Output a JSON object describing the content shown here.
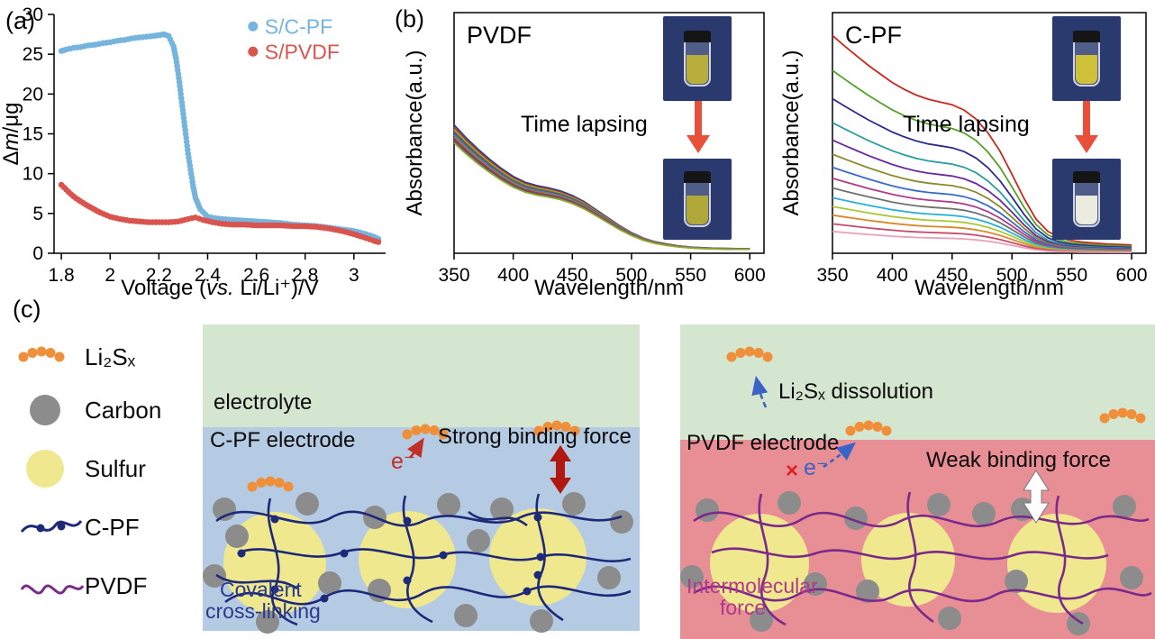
{
  "panels": {
    "a": "(a)",
    "b": "(b)",
    "c": "(c)"
  },
  "colors": {
    "time_arrow": "#e8503a",
    "inset_bg": "#2a3a6e",
    "vial_cap": "#151515"
  },
  "insets": {
    "pvdf_top": "#b9ae3c",
    "pvdf_bottom": "#b0a838",
    "cpf_top": "#cfc03a",
    "cpf_bottom": "#ecebe0"
  },
  "chart_data": [
    {
      "id": "qcm",
      "type": "scatter",
      "xlabel_parts": [
        {
          "t": "Voltage ("
        },
        {
          "t": "vs.",
          "i": true
        },
        {
          "t": " Li/Li⁺)/V"
        }
      ],
      "ylabel_parts": [
        {
          "t": "Δ"
        },
        {
          "t": "m",
          "i": true
        },
        {
          "t": "/μg"
        }
      ],
      "xlim": [
        1.77,
        3.13
      ],
      "ylim": [
        0,
        30
      ],
      "xticks": [
        1.8,
        2,
        2.2,
        2.4,
        2.6,
        2.8,
        3
      ],
      "xtick_labels": [
        "1.8",
        "2",
        "2.2",
        "2.4",
        "2.6",
        "2.8",
        "3"
      ],
      "yticks": [
        0,
        5,
        10,
        15,
        20,
        25,
        30
      ],
      "legend": {
        "fx": 0.6,
        "fy": 0.05
      },
      "layout": {
        "l": 60,
        "r": 12,
        "t": 16,
        "b": 54
      },
      "series": [
        {
          "name": "S/C-PF",
          "color": "#74b4dd",
          "x": [
            1.8,
            1.82,
            1.85,
            1.88,
            1.91,
            1.94,
            1.97,
            2.0,
            2.03,
            2.06,
            2.09,
            2.12,
            2.15,
            2.18,
            2.2,
            2.22,
            2.24,
            2.26,
            2.27,
            2.28,
            2.29,
            2.3,
            2.31,
            2.32,
            2.33,
            2.34,
            2.35,
            2.37,
            2.4,
            2.43,
            2.46,
            2.5,
            2.55,
            2.6,
            2.65,
            2.7,
            2.75,
            2.8,
            2.85,
            2.9,
            2.95,
            3.0,
            3.05,
            3.08,
            3.1
          ],
          "y": [
            25.4,
            25.6,
            25.8,
            25.9,
            26.1,
            26.2,
            26.4,
            26.5,
            26.7,
            26.8,
            27.0,
            27.1,
            27.2,
            27.3,
            27.4,
            27.5,
            27.3,
            26.0,
            24.5,
            22.5,
            20.0,
            17.5,
            15.0,
            12.5,
            10.5,
            8.5,
            7.0,
            5.5,
            4.6,
            4.4,
            4.3,
            4.2,
            4.1,
            4.0,
            3.9,
            3.8,
            3.6,
            3.5,
            3.4,
            3.2,
            3.0,
            2.8,
            2.4,
            2.1,
            1.8
          ]
        },
        {
          "name": "S/PVDF",
          "color": "#d9544f",
          "x": [
            1.8,
            1.82,
            1.84,
            1.86,
            1.88,
            1.9,
            1.93,
            1.96,
            2.0,
            2.04,
            2.08,
            2.12,
            2.16,
            2.2,
            2.24,
            2.28,
            2.32,
            2.35,
            2.38,
            2.42,
            2.46,
            2.5,
            2.55,
            2.6,
            2.65,
            2.7,
            2.75,
            2.8,
            2.85,
            2.9,
            2.95,
            3.0,
            3.05,
            3.08,
            3.1
          ],
          "y": [
            8.6,
            8.0,
            7.4,
            6.9,
            6.5,
            6.1,
            5.6,
            5.1,
            4.6,
            4.3,
            4.1,
            4.0,
            3.9,
            3.9,
            3.9,
            4.0,
            4.3,
            4.5,
            4.2,
            3.9,
            3.7,
            3.6,
            3.6,
            3.5,
            3.5,
            3.5,
            3.4,
            3.4,
            3.3,
            3.1,
            2.8,
            2.4,
            1.9,
            1.6,
            1.4
          ]
        }
      ]
    },
    {
      "id": "uv_pvdf",
      "type": "line",
      "title": "PVDF",
      "annotation": "Time lapsing",
      "xlabel": "Wavelength/nm",
      "ylabel": "Absorbance(a.u.)",
      "xlim": [
        350,
        612
      ],
      "ylim": [
        0,
        1.05
      ],
      "xticks": [
        350,
        400,
        450,
        500,
        550,
        600
      ],
      "xtick_labels": [
        "350",
        "400",
        "450",
        "500",
        "550",
        "600"
      ],
      "box": true,
      "layout": {
        "l": 56,
        "r": 10,
        "t": 14,
        "b": 54
      },
      "x": [
        350,
        360,
        370,
        380,
        390,
        400,
        410,
        420,
        430,
        440,
        450,
        460,
        470,
        480,
        490,
        500,
        510,
        520,
        530,
        540,
        550,
        560,
        570,
        580,
        590,
        600
      ],
      "base_absorbance": [
        0.56,
        0.505,
        0.455,
        0.41,
        0.37,
        0.335,
        0.31,
        0.295,
        0.285,
        0.272,
        0.252,
        0.225,
        0.19,
        0.155,
        0.12,
        0.09,
        0.066,
        0.05,
        0.04,
        0.032,
        0.027,
        0.024,
        0.022,
        0.021,
        0.02,
        0.02
      ],
      "series": [
        {
          "name": "curve-1",
          "scale": 1.0,
          "color": "#26418f"
        },
        {
          "name": "curve-2",
          "scale": 0.98,
          "color": "#b03430"
        },
        {
          "name": "curve-3",
          "scale": 0.965,
          "color": "#c7a02a"
        },
        {
          "name": "curve-4",
          "scale": 0.95,
          "color": "#3c8a38"
        },
        {
          "name": "curve-5",
          "scale": 0.935,
          "color": "#7a3f9e"
        },
        {
          "name": "curve-6",
          "scale": 0.92,
          "color": "#2f9aa0"
        },
        {
          "name": "curve-7",
          "scale": 0.905,
          "color": "#c06a2e"
        },
        {
          "name": "curve-8",
          "scale": 0.89,
          "color": "#963070"
        },
        {
          "name": "curve-9",
          "scale": 0.875,
          "color": "#5b5b5b"
        },
        {
          "name": "curve-10",
          "scale": 0.86,
          "color": "#8faa2c"
        }
      ]
    },
    {
      "id": "uv_cpf",
      "type": "line",
      "title": "C-PF",
      "annotation": "Time lapsing",
      "xlabel": "Wavelength/nm",
      "ylabel": "Absorbance(a.u.)",
      "xlim": [
        350,
        612
      ],
      "ylim": [
        0,
        1.05
      ],
      "xticks": [
        350,
        400,
        450,
        500,
        550,
        600
      ],
      "xtick_labels": [
        "350",
        "400",
        "450",
        "500",
        "550",
        "600"
      ],
      "box": true,
      "layout": {
        "l": 58,
        "r": 10,
        "t": 14,
        "b": 54
      },
      "x": [
        350,
        360,
        370,
        380,
        390,
        400,
        410,
        420,
        430,
        440,
        450,
        460,
        470,
        480,
        490,
        500,
        510,
        520,
        530,
        540,
        550,
        560,
        570,
        580,
        590,
        600
      ],
      "base_absorbance": [
        0.95,
        0.905,
        0.862,
        0.82,
        0.782,
        0.745,
        0.715,
        0.69,
        0.672,
        0.66,
        0.648,
        0.625,
        0.585,
        0.525,
        0.445,
        0.345,
        0.24,
        0.15,
        0.095,
        0.068,
        0.055,
        0.048,
        0.044,
        0.04,
        0.038,
        0.036
      ],
      "series": [
        {
          "name": "curve-1",
          "scale": 1.0,
          "color": "#c8281e"
        },
        {
          "name": "curve-2",
          "scale": 0.84,
          "color": "#55a02a"
        },
        {
          "name": "curve-3",
          "scale": 0.71,
          "color": "#2c2c8e"
        },
        {
          "name": "curve-4",
          "scale": 0.6,
          "color": "#2a9d9d"
        },
        {
          "name": "curve-5",
          "scale": 0.52,
          "color": "#6a2a9d"
        },
        {
          "name": "curve-6",
          "scale": 0.455,
          "color": "#8a8a2a"
        },
        {
          "name": "curve-7",
          "scale": 0.395,
          "color": "#3a6ac8"
        },
        {
          "name": "curve-8",
          "scale": 0.345,
          "color": "#b03a8a"
        },
        {
          "name": "curve-9",
          "scale": 0.3,
          "color": "#707070"
        },
        {
          "name": "curve-10",
          "scale": 0.255,
          "color": "#2ab0d8"
        },
        {
          "name": "curve-11",
          "scale": 0.215,
          "color": "#a8c83a"
        },
        {
          "name": "curve-12",
          "scale": 0.175,
          "color": "#d8882a"
        },
        {
          "name": "curve-13",
          "scale": 0.135,
          "color": "#c84a6a"
        },
        {
          "name": "curve-14",
          "scale": 0.1,
          "color": "#e8a0b8"
        }
      ]
    }
  ],
  "diagram": {
    "legend": [
      {
        "label": "Li₂Sₓ"
      },
      {
        "label": "Carbon"
      },
      {
        "label": "Sulfur"
      },
      {
        "label": "C-PF"
      },
      {
        "label": "PVDF"
      }
    ],
    "left": {
      "electrolyte_label": "electrolyte",
      "electrode_label": "C-PF electrode",
      "binding_label": "Strong binding force",
      "electron_label": "e⁻",
      "crosslink_label_line1": "Covalent",
      "crosslink_label_line2": "cross-linking"
    },
    "right": {
      "dissolution_label": "Li₂Sₓ dissolution",
      "electrode_label": "PVDF electrode",
      "binding_label": "Weak binding force",
      "electron_label": "e⁻",
      "block_label": "×",
      "force_label_line1": "Intermolecular",
      "force_label_line2": "force"
    },
    "colors": {
      "electrolyte": "#d4e6cf",
      "cpf_bg": "#b5cbe3",
      "pvdf_bg": "#e88f96",
      "sulfur": "#f0e88f",
      "carbon": "#8c8c8c",
      "cpf_polymer": "#1e2a78",
      "pvdf_polymer": "#7a2a8a",
      "polysulfide": "#ef8f3a",
      "strong_arrow": "#b01810",
      "weak_arrow": "#ffffff",
      "arrow_blue": "#3a63c8",
      "arrow_red": "#c03028",
      "block_x": "#e02020",
      "crosslink_text": "#2a3a8c",
      "intermolecular_text": "#b03a8a"
    }
  }
}
